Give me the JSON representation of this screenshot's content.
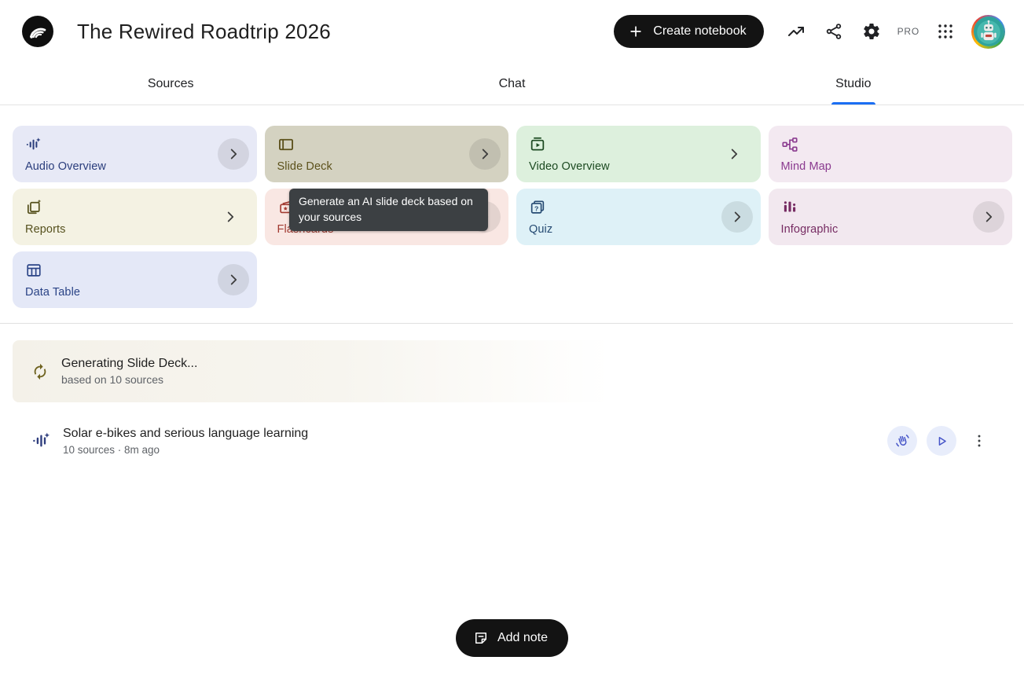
{
  "header": {
    "title": "The Rewired Roadtrip 2026",
    "create_button_label": "Create notebook",
    "pro_badge": "PRO",
    "logo_icon": "notebooklm-logo",
    "action_icons": [
      "trending-up-icon",
      "share-icon",
      "settings-gear-icon",
      "apps-grid-icon"
    ],
    "avatar_icon": "robot-avatar"
  },
  "tabs": {
    "active_color": "#1b6ef3",
    "items": [
      {
        "label": "Sources",
        "active": false
      },
      {
        "label": "Chat",
        "active": false
      },
      {
        "label": "Studio",
        "active": true
      }
    ]
  },
  "studio": {
    "tools": [
      {
        "label": "Audio Overview",
        "icon": "audio-waveform-icon",
        "bg": "#e7e9f6",
        "fg": "#2a3d7c",
        "chevron": "circle"
      },
      {
        "label": "Slide Deck",
        "icon": "slide-deck-icon",
        "bg": "#d4d2c1",
        "fg": "#5c511b",
        "chevron": "circle"
      },
      {
        "label": "Video Overview",
        "icon": "video-overview-icon",
        "bg": "#ddf0dd",
        "fg": "#1c4a21",
        "chevron": "plain"
      },
      {
        "label": "Mind Map",
        "icon": "mind-map-icon",
        "bg": "#f3e9f1",
        "fg": "#8a3a8f",
        "chevron": "none"
      },
      {
        "label": "Reports",
        "icon": "reports-icon",
        "bg": "#f4f2e3",
        "fg": "#56511e",
        "chevron": "plain"
      },
      {
        "label": "Flashcards",
        "icon": "flashcards-icon",
        "bg": "#f9e7e3",
        "fg": "#a23b32",
        "chevron": "circle"
      },
      {
        "label": "Quiz",
        "icon": "quiz-icon",
        "bg": "#def1f7",
        "fg": "#254a72",
        "chevron": "circle"
      },
      {
        "label": "Infographic",
        "icon": "infographic-icon",
        "bg": "#f2e8ef",
        "fg": "#762b62",
        "chevron": "circle"
      },
      {
        "label": "Data Table",
        "icon": "data-table-icon",
        "bg": "#e4e8f7",
        "fg": "#2a4386",
        "chevron": "circle"
      }
    ],
    "tooltip_text": "Generate an AI slide deck based on your sources",
    "generating": {
      "title": "Generating Slide Deck...",
      "subtitle": "based on 10 sources",
      "icon": "autorenew-icon",
      "icon_color": "#6e621f"
    },
    "audio_item": {
      "title": "Solar e-bikes and serious language learning",
      "meta": "10 sources · 8m ago",
      "icon": "audio-waveform-icon",
      "actions": [
        {
          "name": "interactive-mode",
          "icon": "wave-hand-icon"
        },
        {
          "name": "play",
          "icon": "play-icon"
        },
        {
          "name": "more-options",
          "icon": "more-vert-icon"
        }
      ]
    }
  },
  "footer": {
    "add_note_label": "Add note",
    "add_note_icon": "note-icon"
  }
}
